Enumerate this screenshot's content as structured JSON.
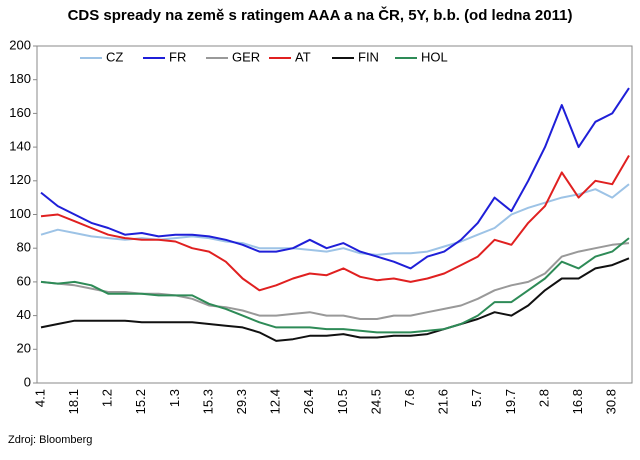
{
  "chart_data": {
    "type": "line",
    "title": "CDS spready na země s ratingem AAA a na ČR, 5Y, b.b. (od ledna 2011)",
    "source": "Zdroj: Bloomberg",
    "categories": [
      "4.1",
      null,
      "18.1",
      null,
      "1.2",
      null,
      "15.2",
      null,
      "1.3",
      null,
      "15.3",
      null,
      "29.3",
      null,
      "12.4",
      null,
      "26.4",
      null,
      "10.5",
      null,
      "24.5",
      null,
      "7.6",
      null,
      "21.6",
      null,
      "5.7",
      null,
      "19.7",
      null,
      "2.8",
      null,
      "16.8",
      null,
      "30.8",
      null
    ],
    "ylim": [
      0,
      200
    ],
    "yticks": [
      0,
      20,
      40,
      60,
      80,
      100,
      120,
      140,
      160,
      180,
      200
    ],
    "series": [
      {
        "name": "CZ",
        "color": "#9dc3e6",
        "values": [
          88,
          91,
          89,
          87,
          86,
          85,
          86,
          85,
          86,
          87,
          86,
          84,
          83,
          80,
          80,
          80,
          79,
          78,
          80,
          77,
          76,
          77,
          77,
          78,
          81,
          84,
          88,
          92,
          100,
          104,
          107,
          110,
          112,
          115,
          110,
          118
        ]
      },
      {
        "name": "FR",
        "color": "#1f1fd8",
        "values": [
          113,
          105,
          100,
          95,
          92,
          88,
          89,
          87,
          88,
          88,
          87,
          85,
          82,
          78,
          78,
          80,
          85,
          80,
          83,
          78,
          75,
          72,
          68,
          75,
          78,
          85,
          95,
          110,
          102,
          120,
          140,
          165,
          140,
          155,
          160,
          175
        ]
      },
      {
        "name": "GER",
        "color": "#999999",
        "values": [
          60,
          59,
          58,
          56,
          54,
          54,
          53,
          53,
          52,
          50,
          46,
          45,
          43,
          40,
          40,
          41,
          42,
          40,
          40,
          38,
          38,
          40,
          40,
          42,
          44,
          46,
          50,
          55,
          58,
          60,
          65,
          75,
          78,
          80,
          82,
          83
        ]
      },
      {
        "name": "AT",
        "color": "#e02020",
        "values": [
          99,
          100,
          96,
          92,
          88,
          86,
          85,
          85,
          84,
          80,
          78,
          72,
          62,
          55,
          58,
          62,
          65,
          64,
          68,
          63,
          61,
          62,
          60,
          62,
          65,
          70,
          75,
          85,
          82,
          95,
          105,
          125,
          110,
          120,
          118,
          135
        ]
      },
      {
        "name": "FIN",
        "color": "#111111",
        "values": [
          33,
          35,
          37,
          37,
          37,
          37,
          36,
          36,
          36,
          36,
          35,
          34,
          33,
          30,
          25,
          26,
          28,
          28,
          29,
          27,
          27,
          28,
          28,
          29,
          32,
          35,
          38,
          42,
          40,
          46,
          55,
          62,
          62,
          68,
          70,
          74
        ]
      },
      {
        "name": "HOL",
        "color": "#2e8b57",
        "values": [
          60,
          59,
          60,
          58,
          53,
          53,
          53,
          52,
          52,
          52,
          47,
          44,
          40,
          36,
          33,
          33,
          33,
          32,
          32,
          31,
          30,
          30,
          30,
          31,
          32,
          35,
          40,
          48,
          48,
          55,
          62,
          72,
          68,
          75,
          78,
          86
        ]
      }
    ]
  }
}
